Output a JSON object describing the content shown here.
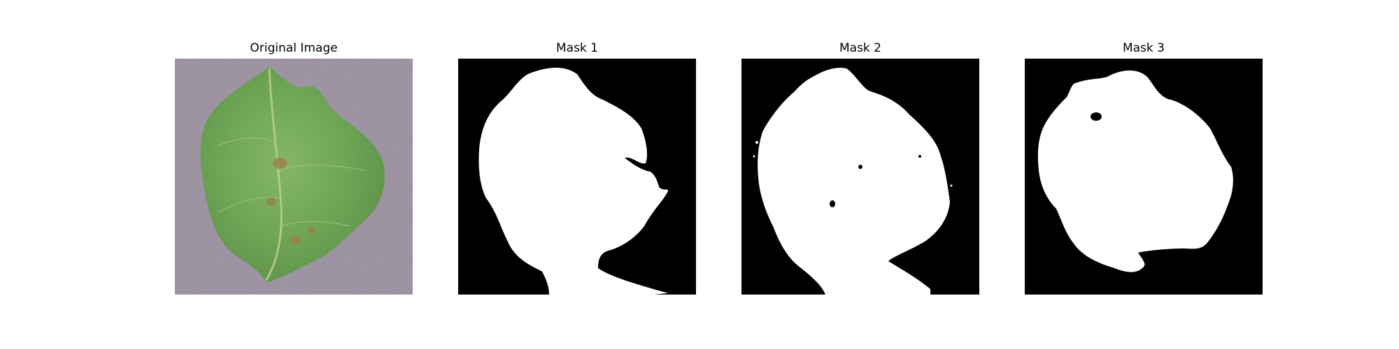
{
  "figure": {
    "panels": [
      {
        "title": "Original Image"
      },
      {
        "title": "Mask 1"
      },
      {
        "title": "Mask 2"
      },
      {
        "title": "Mask 3"
      }
    ],
    "colors": {
      "mask_foreground": "#ffffff",
      "mask_background": "#000000",
      "leaf_green": "#5f9a44",
      "background_purple": "#8a7e8e"
    }
  }
}
